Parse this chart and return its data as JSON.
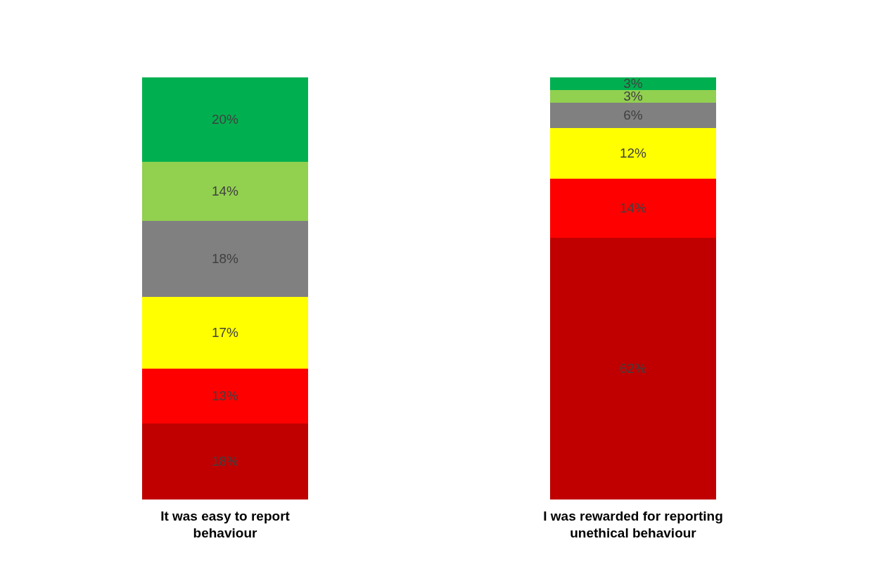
{
  "chart_data": {
    "type": "bar",
    "stacked": true,
    "categories": [
      "It was easy to report behaviour",
      "I was rewarded for reporting unethical behaviour"
    ],
    "series": [
      {
        "color": "#c00000",
        "values": [
          18,
          62
        ],
        "value_labels": [
          "18%",
          "62%"
        ]
      },
      {
        "color": "#ff0000",
        "values": [
          13,
          14
        ],
        "value_labels": [
          "13%",
          "14%"
        ]
      },
      {
        "color": "#ffff00",
        "values": [
          17,
          12
        ],
        "value_labels": [
          "17%",
          "12%"
        ]
      },
      {
        "color": "#808080",
        "values": [
          18,
          6
        ],
        "value_labels": [
          "18%",
          "6%"
        ]
      },
      {
        "color": "#92d050",
        "values": [
          14,
          3
        ],
        "value_labels": [
          "14%",
          "3%"
        ]
      },
      {
        "color": "#00b050",
        "values": [
          20,
          3
        ],
        "value_labels": [
          "20%",
          "3%"
        ]
      }
    ]
  }
}
